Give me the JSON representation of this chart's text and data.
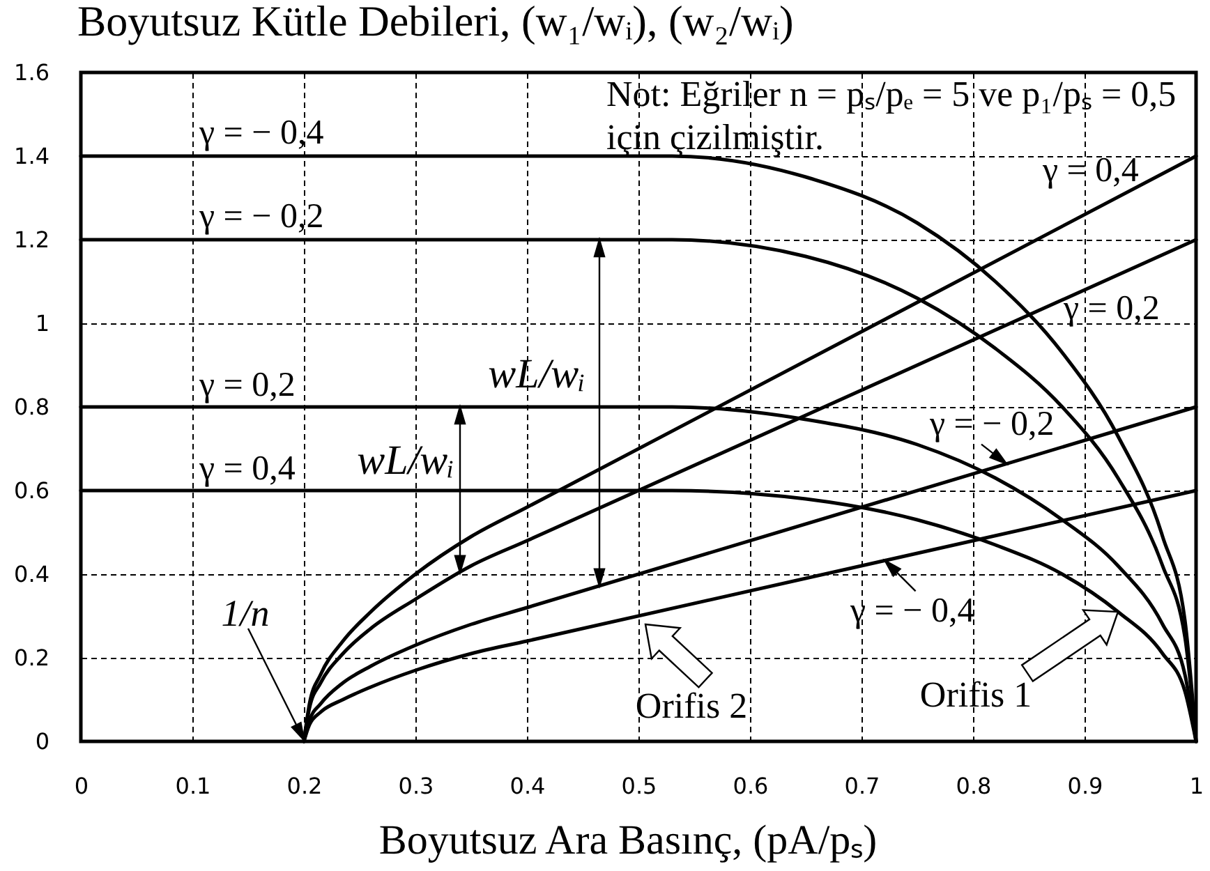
{
  "chart_data": {
    "type": "line",
    "xlabel": "Boyutsuz Ara Basınç, (pA/pₛ)",
    "ylabel": "Boyutsuz Kütle Debileri, (w₁/wᵢ), (w₂/wᵢ)",
    "xlim": [
      0,
      1
    ],
    "ylim": [
      0,
      1.6
    ],
    "xticks": [
      0,
      0.1,
      0.2,
      0.3,
      0.4,
      0.5,
      0.6,
      0.7,
      0.8,
      0.9,
      1
    ],
    "yticks": [
      0,
      0.2,
      0.4,
      0.6,
      0.8,
      1,
      1.2,
      1.4,
      1.6
    ],
    "grid": true,
    "series": [
      {
        "name": "γ = − 0,4",
        "color": "#000000",
        "x": [
          0,
          0.53,
          0.65,
          0.75,
          0.82,
          0.88,
          0.93,
          0.97,
          0.99,
          1
        ],
        "values": [
          1.4,
          1.4,
          1.35,
          1.24,
          1.1,
          0.93,
          0.73,
          0.49,
          0.29,
          0
        ]
      },
      {
        "name": "γ = − 0,2",
        "color": "#000000",
        "x": [
          0,
          0.53,
          0.65,
          0.75,
          0.82,
          0.88,
          0.93,
          0.97,
          0.99,
          1
        ],
        "values": [
          1.2,
          1.2,
          1.16,
          1.06,
          0.94,
          0.8,
          0.63,
          0.42,
          0.25,
          0
        ]
      },
      {
        "name": "γ = 0,2",
        "color": "#000000",
        "x": [
          0,
          0.53,
          0.65,
          0.75,
          0.82,
          0.88,
          0.93,
          0.97,
          0.99,
          1
        ],
        "values": [
          0.8,
          0.8,
          0.77,
          0.71,
          0.63,
          0.53,
          0.42,
          0.28,
          0.16,
          0
        ]
      },
      {
        "name": "γ = 0,4",
        "color": "#000000",
        "x": [
          0,
          0.53,
          0.65,
          0.75,
          0.82,
          0.88,
          0.93,
          0.97,
          0.99,
          1
        ],
        "values": [
          0.6,
          0.6,
          0.58,
          0.53,
          0.47,
          0.4,
          0.31,
          0.21,
          0.12,
          0
        ]
      },
      {
        "name": "γ = 0,4",
        "color": "#000000",
        "x": [
          0.2,
          0.205,
          0.215,
          0.235,
          0.26,
          0.3,
          0.35,
          0.4,
          1
        ],
        "values": [
          0,
          0.09,
          0.16,
          0.24,
          0.31,
          0.4,
          0.49,
          0.56,
          1.4
        ]
      },
      {
        "name": "γ = 0,2",
        "color": "#000000",
        "x": [
          0.2,
          0.205,
          0.215,
          0.235,
          0.26,
          0.3,
          0.35,
          0.4,
          1
        ],
        "values": [
          0,
          0.08,
          0.14,
          0.21,
          0.27,
          0.34,
          0.42,
          0.48,
          1.2
        ]
      },
      {
        "name": "γ = − 0,2",
        "color": "#000000",
        "x": [
          0.2,
          0.205,
          0.215,
          0.235,
          0.26,
          0.3,
          0.35,
          0.4,
          1
        ],
        "values": [
          0,
          0.05,
          0.09,
          0.14,
          0.18,
          0.23,
          0.28,
          0.32,
          0.8
        ]
      },
      {
        "name": "γ = − 0,4",
        "color": "#000000",
        "x": [
          0.2,
          0.205,
          0.215,
          0.235,
          0.26,
          0.3,
          0.35,
          0.4,
          1
        ],
        "values": [
          0,
          0.04,
          0.07,
          0.1,
          0.13,
          0.17,
          0.21,
          0.24,
          0.6
        ]
      }
    ],
    "annotations": [
      "Not: Eğriler n = pₛ/pₑ = 5 ve p₁/pₛ = 0,5 için çizilmiştir.",
      {
        "text": "1/n",
        "x": 0.2,
        "y": 0
      },
      {
        "text": "wL/wᵢ",
        "x": 0.34,
        "y": 0.8
      },
      {
        "text": "wL/wᵢ",
        "x": 0.465,
        "y": 1.2
      },
      "Orifis 2",
      {
        "text": "Orifis 1",
        "x": 0.93,
        "y": 0.31
      }
    ]
  }
}
